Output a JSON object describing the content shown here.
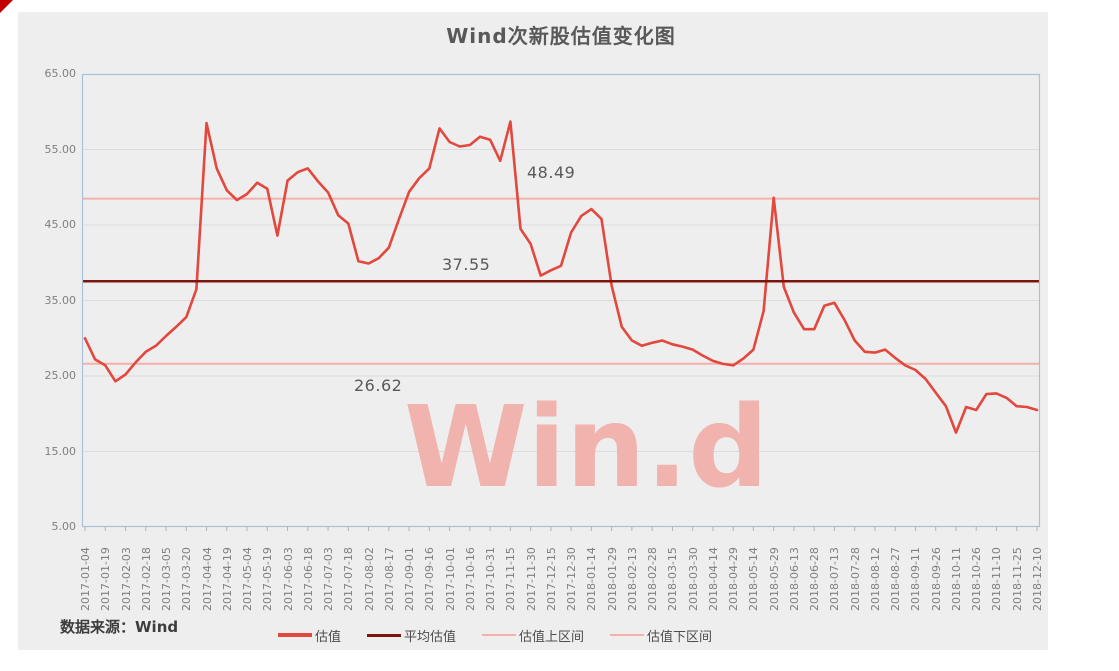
{
  "page": {
    "background": "#ffffff",
    "panel_background": "#efeeee",
    "plot_border_color": "#a9c0da",
    "gridline_color": "#dcdcdc"
  },
  "chart_data": {
    "type": "line",
    "title": "Wind次新股估值变化图",
    "xlabel": "",
    "ylabel": "",
    "ylim": [
      5,
      65
    ],
    "ytick_step": 10,
    "grid": "horizontal",
    "legend_position": "bottom",
    "y_tick_labels": [
      "65.00",
      "55.00",
      "45.00",
      "35.00",
      "25.00",
      "15.00",
      "5.00"
    ],
    "x_tick_labels": [
      "2017-01-04",
      "2017-01-19",
      "2017-02-03",
      "2017-02-18",
      "2017-03-05",
      "2017-03-20",
      "2017-04-04",
      "2017-04-19",
      "2017-05-04",
      "2017-05-19",
      "2017-06-03",
      "2017-06-18",
      "2017-07-03",
      "2017-07-18",
      "2017-08-02",
      "2017-08-17",
      "2017-09-01",
      "2017-09-16",
      "2017-10-01",
      "2017-10-16",
      "2017-10-31",
      "2017-11-15",
      "2017-11-30",
      "2017-12-15",
      "2017-12-30",
      "2018-01-14",
      "2018-01-29",
      "2018-02-13",
      "2018-02-28",
      "2018-03-15",
      "2018-03-30",
      "2018-04-14",
      "2018-04-29",
      "2018-05-14",
      "2018-05-29",
      "2018-06-13",
      "2018-06-28",
      "2018-07-13",
      "2018-07-28",
      "2018-08-12",
      "2018-08-27",
      "2018-09-11",
      "2018-09-26",
      "2018-10-11",
      "2018-10-26",
      "2018-11-10",
      "2018-11-25",
      "2018-12-10"
    ],
    "series": [
      {
        "name": "估值",
        "type": "line",
        "color": "#e2483d",
        "line_width": 2.6,
        "sampling": "two points per x tick interval (tick value followed by midpoint value), estimated from plot",
        "values": [
          30.0,
          27.2,
          26.4,
          24.3,
          25.2,
          26.8,
          28.2,
          29.0,
          30.3,
          31.5,
          32.8,
          36.5,
          58.5,
          52.5,
          49.6,
          48.3,
          49.1,
          50.6,
          49.8,
          43.6,
          50.9,
          52.0,
          52.5,
          50.8,
          49.3,
          46.3,
          45.2,
          40.2,
          39.9,
          40.6,
          42.0,
          45.8,
          49.4,
          51.2,
          52.5,
          57.8,
          56.0,
          55.4,
          55.6,
          56.7,
          56.3,
          53.5,
          58.7,
          44.5,
          42.5,
          38.3,
          39.0,
          39.6,
          44.0,
          46.2,
          47.1,
          45.8,
          37.0,
          31.5,
          29.7,
          29.0,
          29.4,
          29.7,
          29.2,
          28.9,
          28.5,
          27.7,
          27.0,
          26.6,
          26.4,
          27.3,
          28.5,
          33.6,
          48.6,
          36.8,
          33.4,
          31.2,
          31.2,
          34.3,
          34.7,
          32.4,
          29.7,
          28.2,
          28.1,
          28.5,
          27.4,
          26.4,
          25.8,
          24.6,
          22.8,
          21.0,
          17.5,
          20.9,
          20.5,
          22.6,
          22.7,
          22.1,
          21.0,
          20.9,
          20.5
        ],
        "values_at_ticks": [
          30.0,
          26.4,
          25.2,
          28.2,
          30.3,
          32.8,
          58.5,
          49.6,
          49.1,
          49.8,
          50.9,
          52.5,
          49.3,
          45.2,
          39.9,
          42.0,
          49.4,
          52.5,
          56.0,
          55.6,
          56.3,
          58.7,
          42.5,
          39.0,
          44.0,
          47.1,
          37.0,
          29.7,
          29.4,
          29.2,
          28.5,
          27.0,
          26.4,
          28.5,
          48.6,
          33.4,
          31.2,
          34.7,
          29.7,
          28.1,
          27.4,
          25.8,
          22.8,
          17.5,
          20.5,
          22.7,
          21.0,
          20.5
        ]
      },
      {
        "name": "平均估值",
        "type": "constant",
        "color": "#7c150d",
        "line_width": 2.4,
        "value": 37.55
      },
      {
        "name": "估值上区间",
        "type": "constant",
        "color": "#f4b0ab",
        "line_width": 2,
        "value": 48.49
      },
      {
        "name": "估值下区间",
        "type": "constant",
        "color": "#f4b0ab",
        "line_width": 2,
        "value": 26.62
      }
    ],
    "legend": [
      {
        "label": "估值",
        "color": "#e2483d",
        "thickness": 4
      },
      {
        "label": "平均估值",
        "color": "#7c150d",
        "thickness": 3
      },
      {
        "label": "估值上区间",
        "color": "#f4b0ab",
        "thickness": 2
      },
      {
        "label": "估值下区间",
        "color": "#f4b0ab",
        "thickness": 2
      }
    ],
    "annotations": [
      {
        "text": "48.49",
        "x": 527,
        "y": 163
      },
      {
        "text": "37.55",
        "x": 442,
        "y": 255
      },
      {
        "text": "26.62",
        "x": 354,
        "y": 376
      }
    ],
    "watermark": "Win.d",
    "source_note": "数据来源：Wind"
  }
}
